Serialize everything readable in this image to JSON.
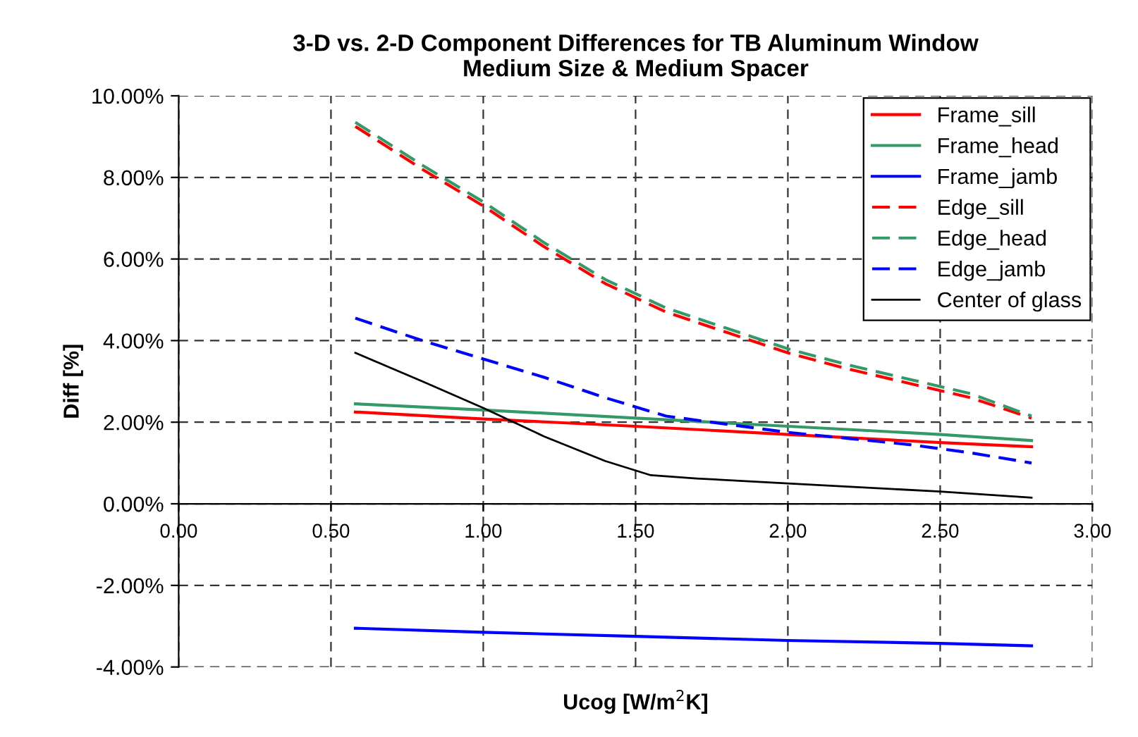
{
  "chart_data": {
    "type": "line",
    "title": "3-D vs. 2-D Component Differences for TB Aluminum Window\nMedium Size & Medium Spacer",
    "xlabel": "Ucog [W/m$^{2}$K]",
    "ylabel": "Diff [%]",
    "xlim": [
      0,
      3
    ],
    "xticks": [
      {
        "value": 0,
        "label": "0.00"
      },
      {
        "value": 0.5,
        "label": "0.50"
      },
      {
        "value": 1,
        "label": "1.00"
      },
      {
        "value": 1.5,
        "label": "1.50"
      },
      {
        "value": 2,
        "label": "2.00"
      },
      {
        "value": 2.5,
        "label": "2.50"
      },
      {
        "value": 3,
        "label": "3.00"
      }
    ],
    "ylim": [
      -4,
      10
    ],
    "yticks": [
      {
        "value": -4,
        "label": "-4.00%"
      },
      {
        "value": -2,
        "label": "-2.00%"
      },
      {
        "value": 0,
        "label": "0.00%"
      },
      {
        "value": 2,
        "label": "2.00%"
      },
      {
        "value": 4,
        "label": "4.00%"
      },
      {
        "value": 6,
        "label": "6.00%"
      },
      {
        "value": 8,
        "label": "8.00%"
      },
      {
        "value": 10,
        "label": "10.00%"
      }
    ],
    "grid": true,
    "legend": "top right",
    "marker": "none",
    "series": [
      {
        "name": "Frame_sill",
        "color": "#ff0000",
        "line_style": "solid",
        "x": [
          0.58,
          1.0,
          1.5,
          2.0,
          2.5,
          2.8
        ],
        "values": [
          2.25,
          2.08,
          1.9,
          1.7,
          1.5,
          1.4
        ]
      },
      {
        "name": "Frame_head",
        "color": "#339966",
        "line_style": "solid",
        "x": [
          0.58,
          1.0,
          1.5,
          2.0,
          2.5,
          2.8
        ],
        "values": [
          2.45,
          2.3,
          2.1,
          1.9,
          1.7,
          1.55
        ]
      },
      {
        "name": "Frame_jamb",
        "color": "#0000ff",
        "line_style": "solid",
        "x": [
          0.58,
          1.0,
          1.5,
          2.0,
          2.5,
          2.8
        ],
        "values": [
          -3.05,
          -3.15,
          -3.25,
          -3.35,
          -3.42,
          -3.48
        ]
      },
      {
        "name": "Edge_sill",
        "color": "#ff0000",
        "line_style": "dashed",
        "x": [
          0.58,
          0.8,
          1.0,
          1.2,
          1.4,
          1.6,
          1.8,
          2.0,
          2.2,
          2.4,
          2.6,
          2.8
        ],
        "values": [
          9.25,
          8.2,
          7.3,
          6.3,
          5.4,
          4.7,
          4.2,
          3.7,
          3.3,
          2.95,
          2.6,
          2.1
        ]
      },
      {
        "name": "Edge_head",
        "color": "#339966",
        "line_style": "dashed",
        "x": [
          0.58,
          0.8,
          1.0,
          1.2,
          1.4,
          1.6,
          1.8,
          2.0,
          2.2,
          2.4,
          2.6,
          2.8
        ],
        "values": [
          9.35,
          8.3,
          7.4,
          6.4,
          5.5,
          4.8,
          4.3,
          3.8,
          3.4,
          3.05,
          2.7,
          2.15
        ]
      },
      {
        "name": "Edge_jamb",
        "color": "#0000ff",
        "line_style": "dashed",
        "x": [
          0.58,
          0.8,
          1.0,
          1.2,
          1.4,
          1.6,
          1.8,
          2.0,
          2.2,
          2.4,
          2.6,
          2.8
        ],
        "values": [
          4.55,
          4.0,
          3.55,
          3.1,
          2.6,
          2.15,
          1.95,
          1.75,
          1.6,
          1.45,
          1.25,
          1.0
        ]
      },
      {
        "name": "Center of glass",
        "color": "#000000",
        "line_style": "solid",
        "x": [
          0.58,
          0.8,
          1.0,
          1.2,
          1.4,
          1.55,
          1.7,
          2.0,
          2.5,
          2.8
        ],
        "values": [
          3.7,
          3.0,
          2.35,
          1.65,
          1.05,
          0.7,
          0.62,
          0.5,
          0.3,
          0.15
        ]
      }
    ]
  }
}
